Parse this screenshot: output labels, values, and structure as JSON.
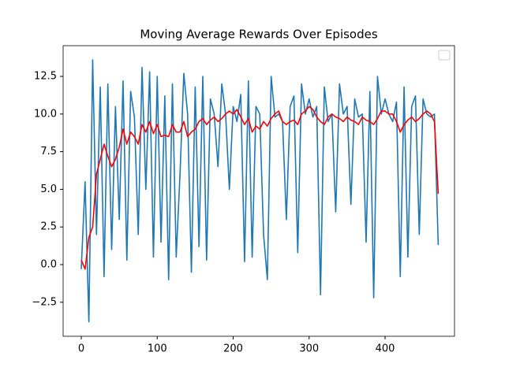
{
  "chart_data": {
    "type": "line",
    "title": "Moving Average Rewards Over Episodes",
    "x": [
      0,
      5,
      10,
      15,
      20,
      25,
      30,
      35,
      40,
      45,
      50,
      55,
      60,
      65,
      70,
      75,
      80,
      85,
      90,
      95,
      100,
      105,
      110,
      115,
      120,
      125,
      130,
      135,
      140,
      145,
      150,
      155,
      160,
      165,
      170,
      175,
      180,
      185,
      190,
      195,
      200,
      205,
      210,
      215,
      220,
      225,
      230,
      235,
      240,
      245,
      250,
      255,
      260,
      265,
      270,
      275,
      280,
      285,
      290,
      295,
      300,
      305,
      310,
      315,
      320,
      325,
      330,
      335,
      340,
      345,
      350,
      355,
      360,
      365,
      370,
      375,
      380,
      385,
      390,
      395,
      400,
      405,
      410,
      415,
      420,
      425,
      430,
      435,
      440,
      445,
      450,
      455,
      460,
      465,
      470
    ],
    "series": [
      {
        "color": "#1f77b4",
        "values": [
          -0.3,
          5.5,
          -3.8,
          13.6,
          2,
          11.8,
          -0.8,
          12,
          1,
          10.5,
          3,
          12.2,
          0.3,
          11.5,
          9.8,
          2,
          13.1,
          5,
          12.8,
          0.5,
          12.5,
          1.5,
          11.2,
          -1,
          12,
          0.5,
          6,
          12.7,
          10,
          -0.5,
          11.8,
          1.2,
          12.5,
          0.3,
          11,
          10,
          6.5,
          12,
          10,
          5,
          10.5,
          9.5,
          11.3,
          0.2,
          12.2,
          0.5,
          10.5,
          10,
          2,
          -1,
          12.5,
          9.8,
          10,
          9.5,
          3,
          10.5,
          11.2,
          0.8,
          12,
          10,
          11,
          9.8,
          10.5,
          -2,
          11.8,
          9.5,
          10,
          3.5,
          12,
          10,
          10.5,
          4,
          11,
          9.8,
          10,
          1.5,
          11.5,
          -2.2,
          12.5,
          10,
          11,
          10,
          9.5,
          10.8,
          -0.8,
          11.8,
          0.5,
          10.5,
          11.2,
          2,
          11,
          10,
          9.8,
          10,
          1.3
        ]
      },
      {
        "color": "#ff0000",
        "values": [
          0.3,
          -0.3,
          1.8,
          2.5,
          6,
          7,
          8,
          7.2,
          6.5,
          7,
          7.8,
          9,
          8,
          8.8,
          8.5,
          8,
          9.3,
          8.8,
          9.5,
          8.7,
          9.3,
          8.5,
          8.6,
          8.5,
          9.3,
          8.8,
          8.8,
          9.5,
          8.5,
          8.8,
          9,
          9.5,
          9.7,
          9.3,
          9.6,
          9.8,
          9.5,
          9.7,
          10,
          10.2,
          10,
          10.3,
          9.8,
          9.3,
          9.7,
          8.8,
          9.2,
          9,
          9.5,
          9.2,
          9.7,
          10,
          10.2,
          9.5,
          9.3,
          9.5,
          9.6,
          9.3,
          10,
          10.2,
          10.5,
          10.3,
          9.8,
          9.5,
          9.3,
          9.8,
          10,
          9.8,
          9.7,
          9.5,
          9.8,
          9.6,
          9.5,
          9.3,
          9.8,
          9.6,
          9.5,
          9.3,
          9.7,
          10.2,
          10.2,
          10,
          10,
          9.5,
          8.8,
          9.3,
          9.6,
          9.8,
          9.5,
          9.7,
          10,
          10.2,
          10,
          9.5,
          4.7
        ]
      }
    ],
    "xlim": [
      -23.9,
      491.4
    ],
    "xticks": [
      0,
      100,
      200,
      300,
      400
    ],
    "ylim": [
      -4.76,
      14.54
    ],
    "yticks": [
      {
        "value": -2.5,
        "label": "−2.5"
      },
      {
        "value": 0,
        "label": "0.0"
      },
      2.5,
      {
        "value": 5,
        "label": "5.0"
      },
      7.5,
      {
        "value": 10,
        "label": "10.0"
      },
      12.5
    ]
  }
}
